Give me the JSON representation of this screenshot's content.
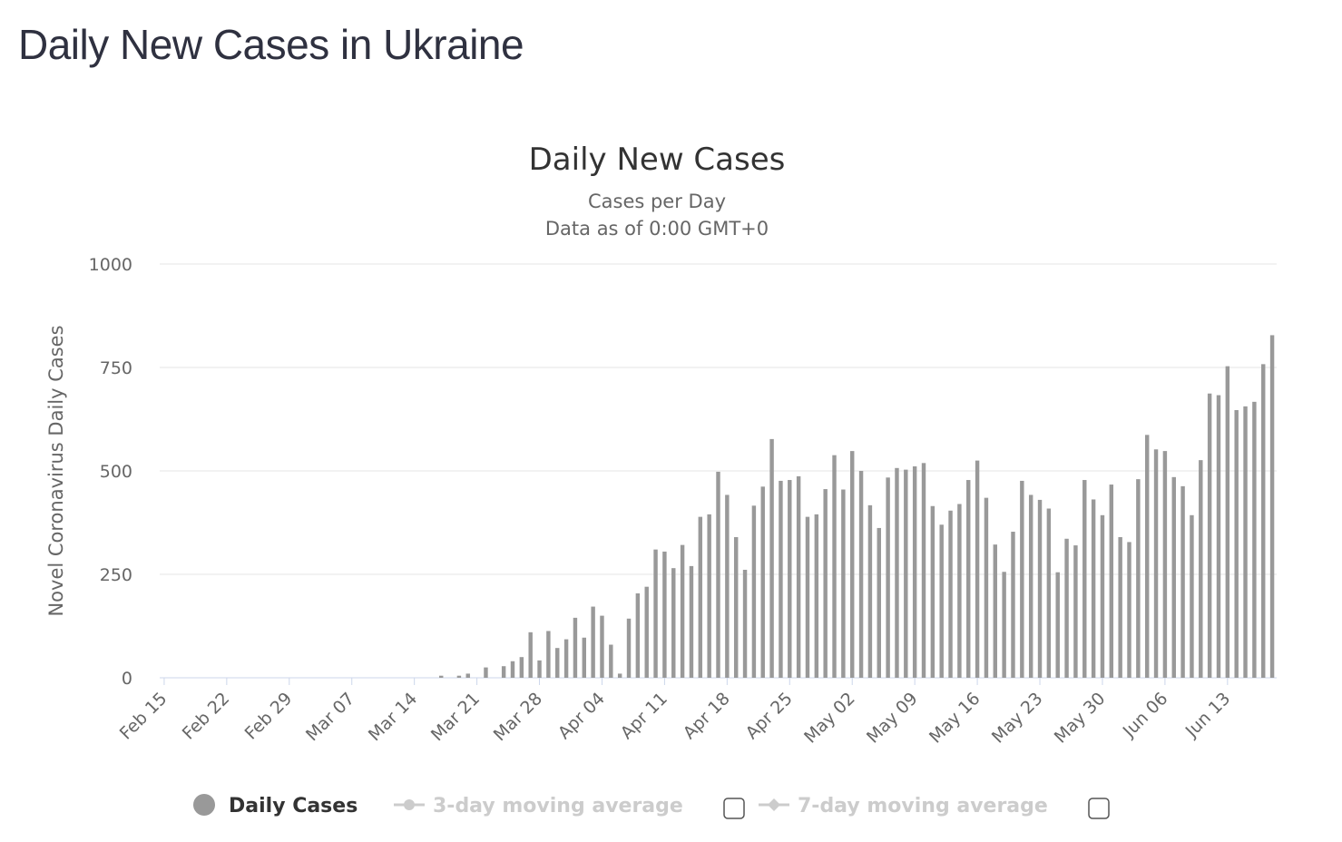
{
  "page": {
    "title": "Daily New Cases in Ukraine"
  },
  "colors": {
    "bar": "#999999",
    "grid": "#e6e6e6",
    "axis": "#ccd6eb",
    "legend_inactive": "#cccccc",
    "legend_active": "#333333"
  },
  "legend": {
    "items": [
      {
        "label": "Daily Cases",
        "icon": "circle-marker-icon",
        "active": true,
        "checkbox": false
      },
      {
        "label": "3-day moving average",
        "icon": "line-circle-marker-icon",
        "active": false,
        "checkbox": true
      },
      {
        "label": "7-day moving average",
        "icon": "line-diamond-marker-icon",
        "active": false,
        "checkbox": true
      }
    ]
  },
  "chart_data": {
    "type": "bar",
    "title": "Daily New Cases",
    "subtitle": [
      "Cases per Day",
      "Data as of 0:00 GMT+0"
    ],
    "ylabel": "Novel Coronavirus Daily Cases",
    "xlabel": "",
    "ylim": [
      0,
      1000
    ],
    "yticks": [
      0,
      250,
      500,
      750,
      1000
    ],
    "grid": true,
    "legend_position": "bottom",
    "xtick_labels": [
      "Feb 15",
      "Feb 22",
      "Feb 29",
      "Mar 07",
      "Mar 14",
      "Mar 21",
      "Mar 28",
      "Apr 04",
      "Apr 11",
      "Apr 18",
      "Apr 25",
      "May 02",
      "May 09",
      "May 16",
      "May 23",
      "May 30",
      "Jun 06",
      "Jun 13"
    ],
    "series": [
      {
        "name": "Daily Cases",
        "start_date": "Feb 15",
        "values": [
          0,
          0,
          0,
          0,
          0,
          0,
          0,
          0,
          0,
          0,
          0,
          0,
          0,
          0,
          0,
          0,
          0,
          0,
          0,
          0,
          0,
          0,
          0,
          0,
          0,
          0,
          0,
          0,
          0,
          0,
          0,
          5,
          0,
          5,
          10,
          0,
          25,
          0,
          28,
          40,
          50,
          110,
          42,
          113,
          72,
          93,
          145,
          97,
          172,
          150,
          80,
          10,
          143,
          204,
          220,
          310,
          305,
          265,
          321,
          270,
          389,
          395,
          498,
          442,
          340,
          261,
          416,
          462,
          577,
          476,
          478,
          487,
          389,
          395,
          456,
          538,
          455,
          548,
          500,
          417,
          362,
          484,
          507,
          503,
          511,
          519,
          415,
          370,
          404,
          420,
          478,
          525,
          435,
          322,
          256,
          353,
          476,
          442,
          430,
          409,
          255,
          336,
          320,
          478,
          431,
          393,
          467,
          340,
          328,
          480,
          587,
          552,
          548,
          485,
          463,
          393,
          526,
          687,
          683,
          753,
          647,
          656,
          667,
          758,
          828
        ]
      }
    ]
  }
}
